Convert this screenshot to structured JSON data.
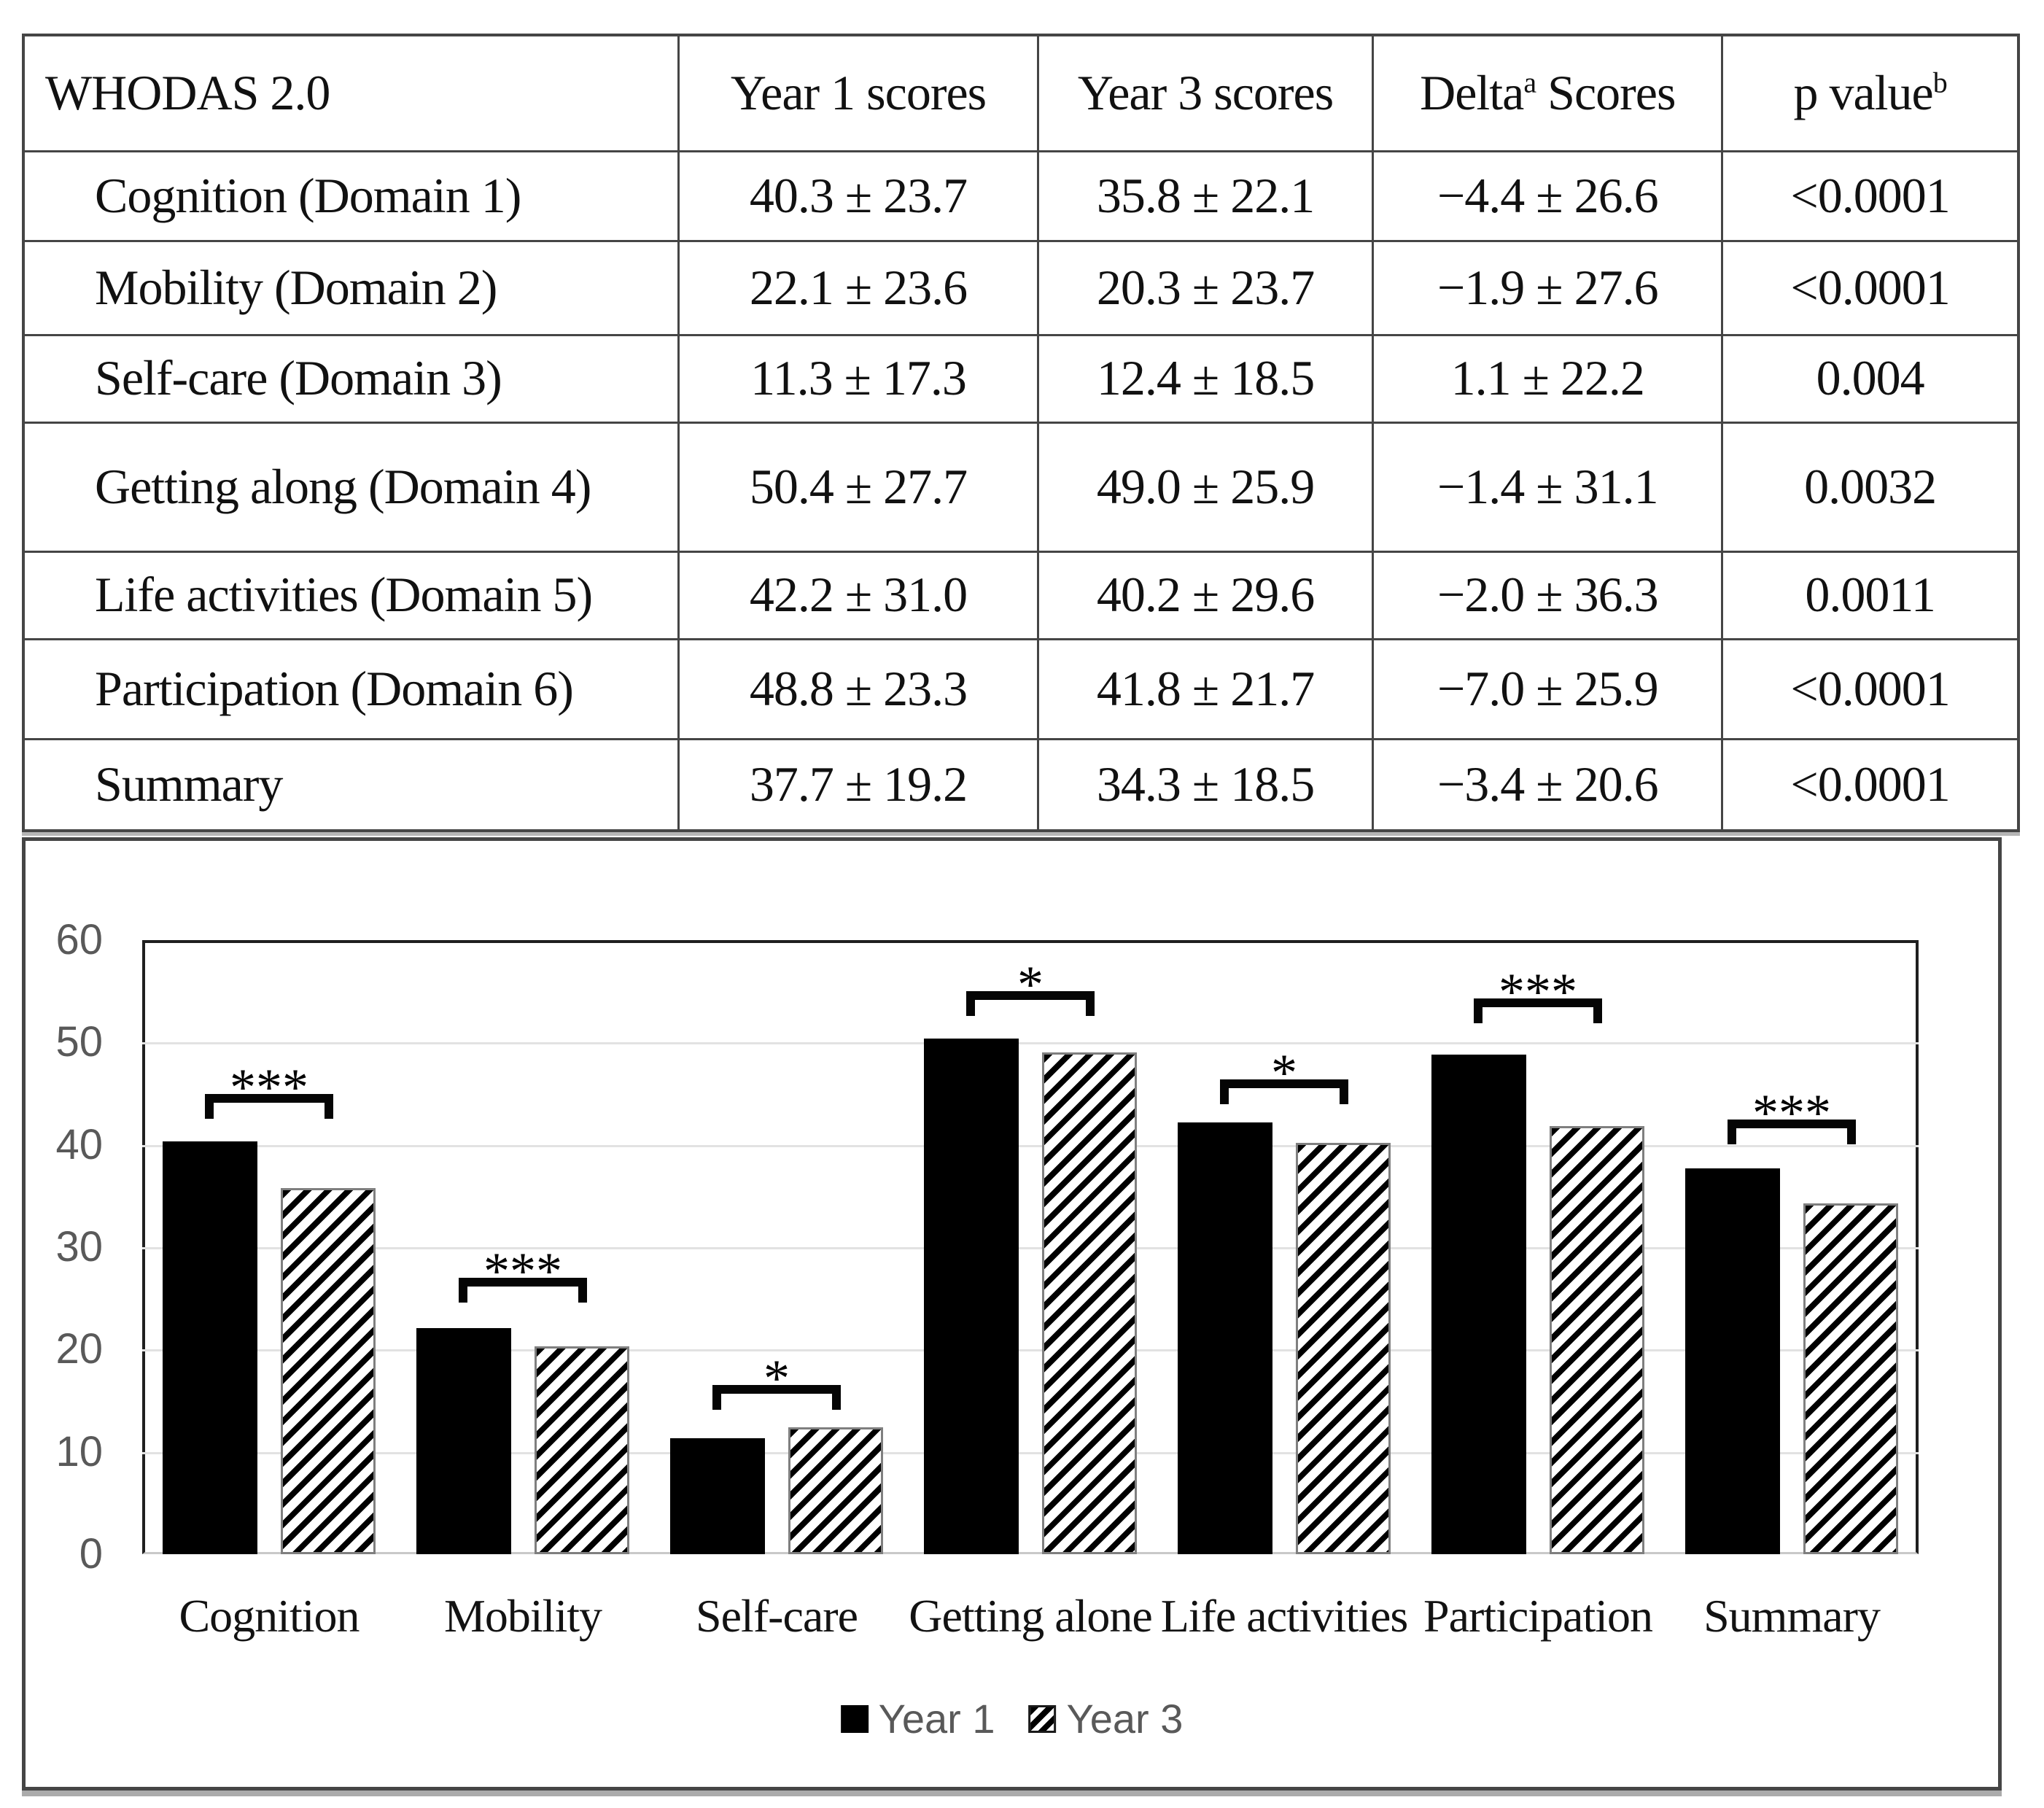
{
  "table": {
    "headers": [
      {
        "pre": "WHODAS 2.0",
        "sup": "",
        "post": ""
      },
      {
        "pre": "Year 1 scores",
        "sup": "",
        "post": ""
      },
      {
        "pre": "Year 3 scores",
        "sup": "",
        "post": ""
      },
      {
        "pre": "Delta",
        "sup": "a",
        "post": " Scores"
      },
      {
        "pre": "p value",
        "sup": "b",
        "post": ""
      }
    ],
    "rows": [
      [
        "Cognition (Domain 1)",
        "40.3 ± 23.7",
        "35.8 ± 22.1",
        "−4.4 ± 26.6",
        "<0.0001"
      ],
      [
        "Mobility (Domain 2)",
        "22.1 ± 23.6",
        "20.3 ± 23.7",
        "−1.9 ± 27.6",
        "<0.0001"
      ],
      [
        "Self-care (Domain 3)",
        "11.3 ± 17.3",
        "12.4 ± 18.5",
        "1.1 ± 22.2",
        "0.004"
      ],
      [
        "Getting along (Domain 4)",
        "50.4 ± 27.7",
        "49.0 ± 25.9",
        "−1.4 ± 31.1",
        "0.0032"
      ],
      [
        "Life activities (Domain 5)",
        "42.2 ± 31.0",
        "40.2 ± 29.6",
        "−2.0 ± 36.3",
        "0.0011"
      ],
      [
        "Participation (Domain 6)",
        "48.8 ± 23.3",
        "41.8 ± 21.7",
        "−7.0 ± 25.9",
        "<0.0001"
      ],
      [
        "Summary",
        "37.7 ± 19.2",
        "34.3 ± 18.5",
        "−3.4 ± 20.6",
        "<0.0001"
      ]
    ]
  },
  "chart_data": {
    "type": "bar",
    "categories": [
      "Cognition",
      "Mobility",
      "Self-care",
      "Getting alone",
      "Life activities",
      "Participation",
      "Summary"
    ],
    "series": [
      {
        "name": "Year 1",
        "style": "solid-black",
        "values": [
          40.3,
          22.1,
          11.3,
          50.4,
          42.2,
          48.8,
          37.7
        ]
      },
      {
        "name": "Year 3",
        "style": "diagonal-hatch",
        "values": [
          35.8,
          20.3,
          12.4,
          49.0,
          40.2,
          41.8,
          34.3
        ]
      }
    ],
    "title": "",
    "xlabel": "",
    "ylabel": "",
    "ylim": [
      0,
      60
    ],
    "yticks": [
      0,
      10,
      20,
      30,
      40,
      50,
      60
    ],
    "grid": true,
    "legend_position": "bottom",
    "significance": [
      {
        "category": "Cognition",
        "stars": "***",
        "bracket_y": 45.0
      },
      {
        "category": "Mobility",
        "stars": "***",
        "bracket_y": 27.0
      },
      {
        "category": "Self-care",
        "stars": "*",
        "bracket_y": 16.5
      },
      {
        "category": "Getting alone",
        "stars": "*",
        "bracket_y": 55.0
      },
      {
        "category": "Life activities",
        "stars": "*",
        "bracket_y": 46.4
      },
      {
        "category": "Participation",
        "stars": "***",
        "bracket_y": 54.3
      },
      {
        "category": "Summary",
        "stars": "***",
        "bracket_y": 42.5
      }
    ]
  },
  "colors": {
    "bar_year1": "#000000",
    "bar_year3_hatch": "#000000",
    "grid_line": "#e2e2e2",
    "axis_text": "#595959",
    "legend_text": "#595959",
    "table_border": "#454545"
  }
}
